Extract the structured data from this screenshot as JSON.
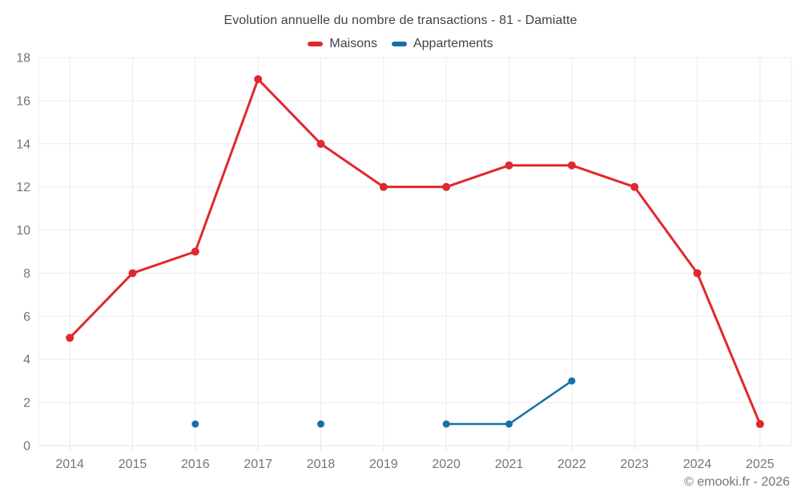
{
  "title": "Evolution annuelle du nombre de transactions - 81 - Damiatte",
  "legend": {
    "items": [
      {
        "label": "Maisons",
        "color": "#e0282e"
      },
      {
        "label": "Appartements",
        "color": "#1670a8"
      }
    ]
  },
  "footer": {
    "copyright": "© emooki.fr - 2026"
  },
  "colors": {
    "grid": "#ebebeb",
    "axis_line": "#e3e3e3",
    "axis_text": "#757575",
    "title_text": "#424242"
  },
  "chart_data": {
    "type": "line",
    "title": "Evolution annuelle du nombre de transactions - 81 - Damiatte",
    "xlabel": "",
    "ylabel": "",
    "x": [
      2014,
      2015,
      2016,
      2017,
      2018,
      2019,
      2020,
      2021,
      2022,
      2023,
      2024,
      2025
    ],
    "series": [
      {
        "name": "Maisons",
        "color": "#e0282e",
        "marker_radius": 5,
        "line_width": 3,
        "points": [
          [
            2014,
            5
          ],
          [
            2015,
            8
          ],
          [
            2016,
            9
          ],
          [
            2017,
            17
          ],
          [
            2018,
            14
          ],
          [
            2019,
            12
          ],
          [
            2020,
            12
          ],
          [
            2021,
            13
          ],
          [
            2022,
            13
          ],
          [
            2023,
            12
          ],
          [
            2024,
            8
          ],
          [
            2025,
            1
          ]
        ]
      },
      {
        "name": "Appartements",
        "color": "#1670a8",
        "marker_radius": 4.5,
        "line_width": 2.5,
        "points": [
          [
            2016,
            1
          ],
          [
            2018,
            1
          ],
          [
            2020,
            1
          ],
          [
            2021,
            1
          ],
          [
            2022,
            3
          ]
        ]
      }
    ],
    "ylim": [
      0,
      18
    ],
    "yticks": [
      0,
      2,
      4,
      6,
      8,
      10,
      12,
      14,
      16,
      18
    ],
    "grid": true,
    "legend_position": "top"
  }
}
